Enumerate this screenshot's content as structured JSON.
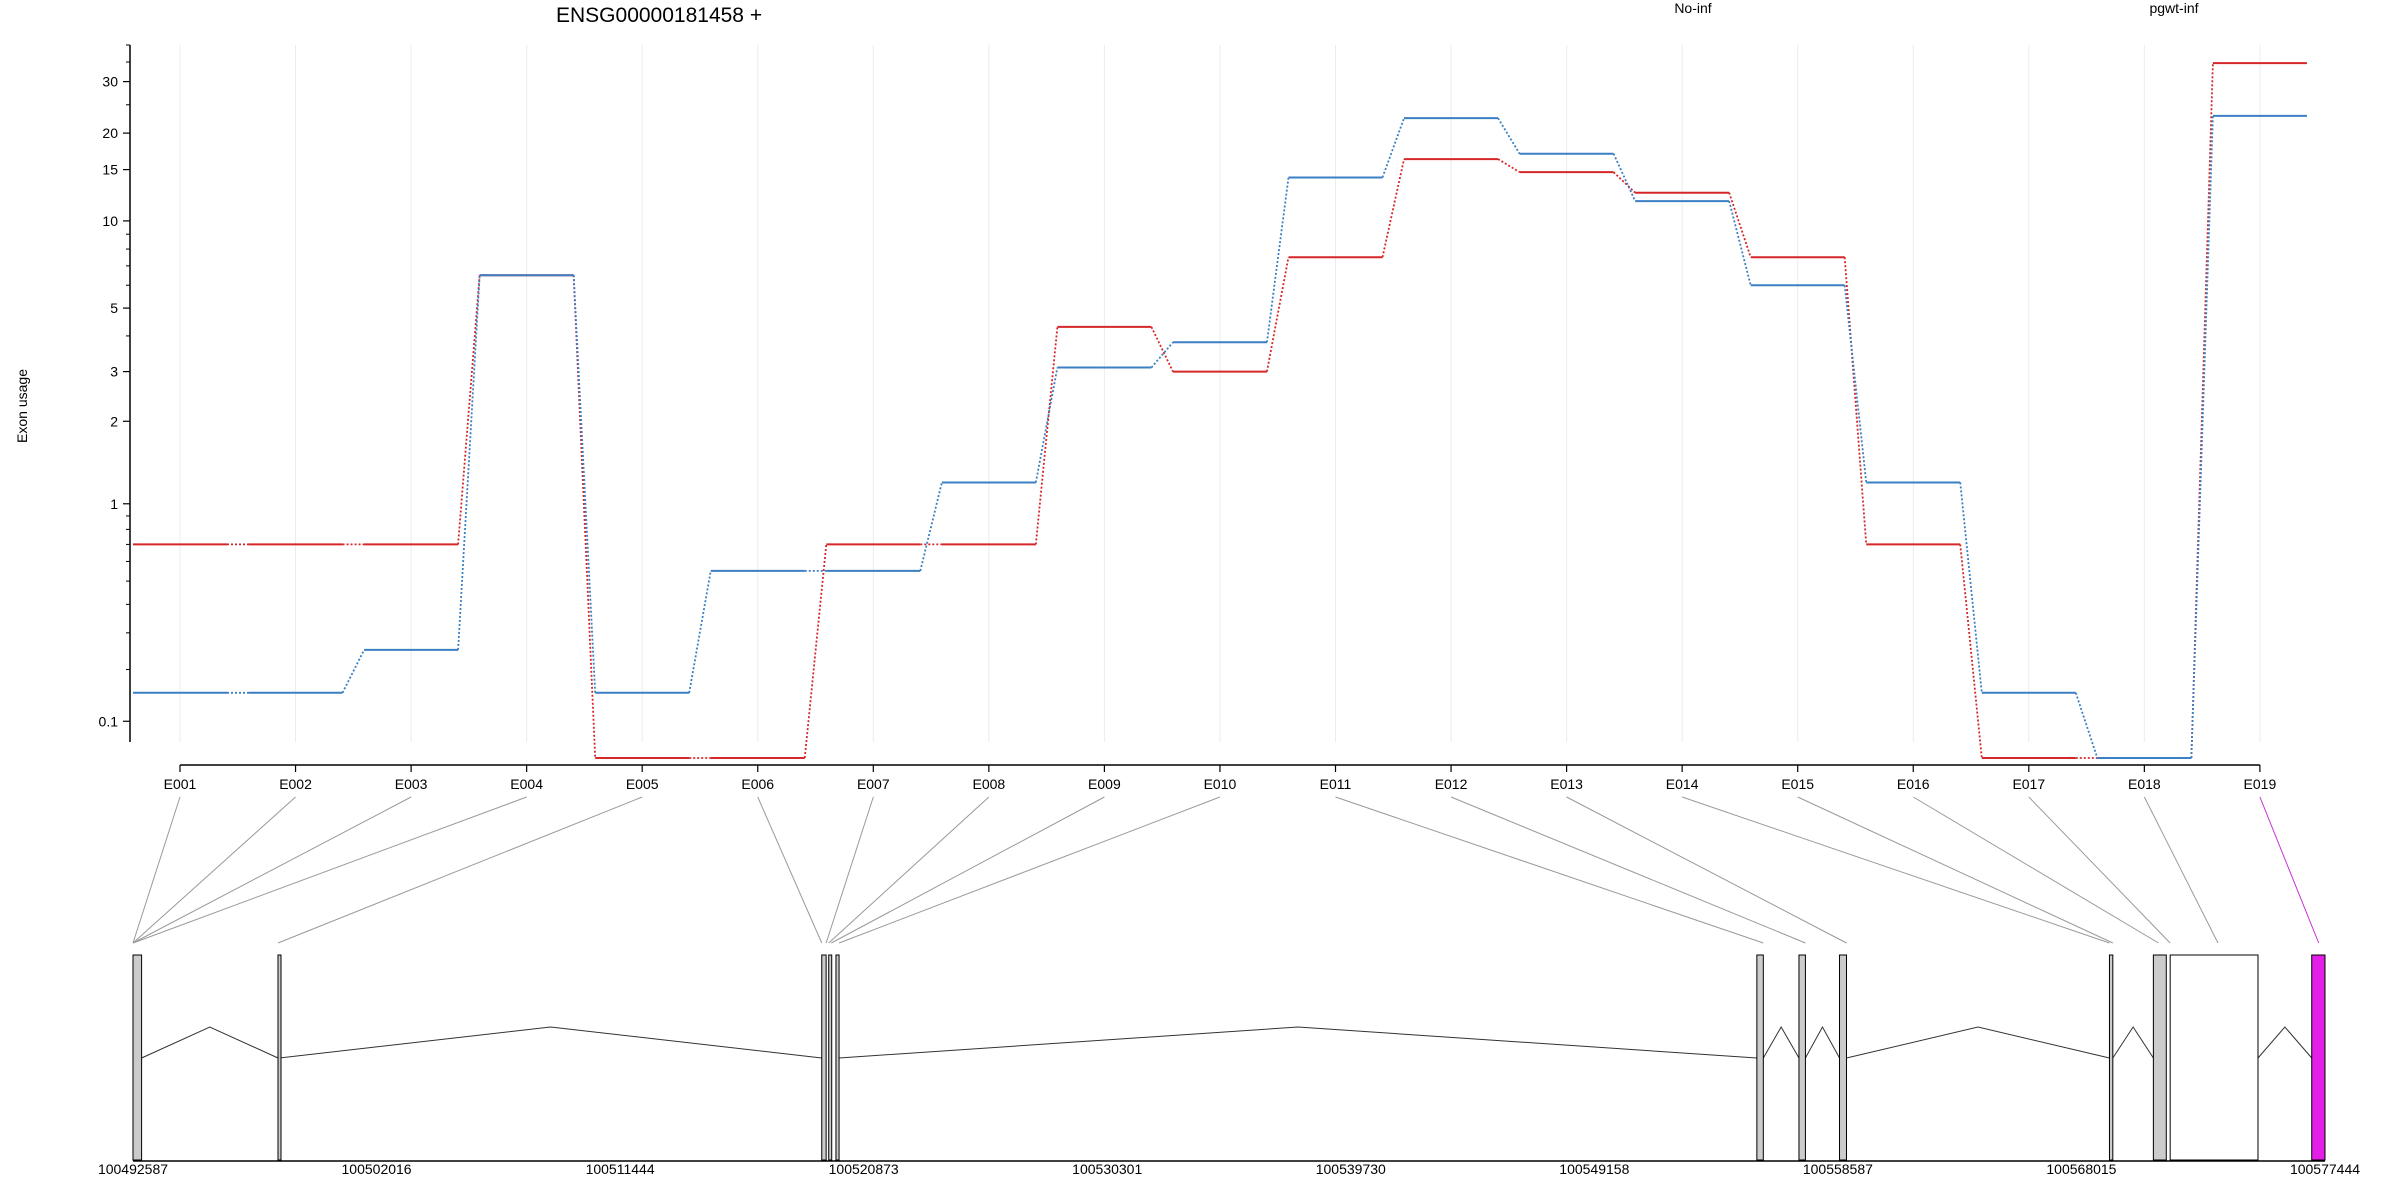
{
  "chart_data": {
    "type": "line",
    "title": "ENSG00000181458 +",
    "ylabel": "Exon usage",
    "xlabel": "",
    "y_scale": "log(y+0.1)",
    "ylim": [
      0.07,
      40
    ],
    "y_ticks": [
      0.1,
      1,
      2,
      3,
      5,
      10,
      15,
      20,
      30
    ],
    "y_tick_labels": [
      "0.1",
      "1",
      "2",
      "3",
      "5",
      "10",
      "15",
      "20",
      "30"
    ],
    "categories": [
      "E001",
      "E002",
      "E003",
      "E004",
      "E005",
      "E006",
      "E007",
      "E008",
      "E009",
      "E010",
      "E011",
      "E012",
      "E013",
      "E014",
      "E015",
      "E016",
      "E017",
      "E018",
      "E019"
    ],
    "series": [
      {
        "name": "No-inf",
        "color": "#d62728",
        "values": [
          0.7,
          0.7,
          0.7,
          6.5,
          0.05,
          0.05,
          0.7,
          0.7,
          4.3,
          3.0,
          7.5,
          16.3,
          14.7,
          12.5,
          7.5,
          0.7,
          0.05,
          0.05,
          34.7
        ]
      },
      {
        "name": "pgwt-inf",
        "color": "#3b7fc4",
        "values": [
          0.15,
          0.15,
          0.25,
          6.5,
          0.15,
          0.55,
          0.55,
          1.2,
          3.1,
          3.8,
          14.1,
          22.5,
          17.0,
          11.7,
          6.0,
          1.2,
          0.15,
          0.05,
          22.9
        ]
      }
    ],
    "legend_position": "top",
    "grid": "vertical",
    "gene_model": {
      "coordinate_labels": [
        "100492587",
        "100502016",
        "100511444",
        "100520873",
        "100530301",
        "100539730",
        "100549158",
        "100558587",
        "100568015",
        "100577444"
      ],
      "coord_min": 100492587,
      "coord_max": 100577444,
      "exons": [
        {
          "start": 100492587,
          "end": 100492920,
          "fill": "#cccccc"
        },
        {
          "start": 100498200,
          "end": 100498250,
          "fill": "#cccccc"
        },
        {
          "start": 100519250,
          "end": 100519420,
          "fill": "#cccccc"
        },
        {
          "start": 100519520,
          "end": 100519620,
          "fill": "#cccccc"
        },
        {
          "start": 100519800,
          "end": 100519920,
          "fill": "#cccccc"
        },
        {
          "start": 100555450,
          "end": 100555700,
          "fill": "#cccccc"
        },
        {
          "start": 100557080,
          "end": 100557330,
          "fill": "#cccccc"
        },
        {
          "start": 100558650,
          "end": 100558920,
          "fill": "#cccccc"
        },
        {
          "start": 100569100,
          "end": 100569230,
          "fill": "#cccccc"
        },
        {
          "start": 100570800,
          "end": 100571300,
          "fill": "#cccccc"
        },
        {
          "start": 100571450,
          "end": 100574850,
          "fill": "#ffffff"
        },
        {
          "start": 100576930,
          "end": 100577444,
          "fill": "#e31ee6"
        }
      ],
      "exon_map_targets": [
        100492587,
        100492587,
        100492587,
        100492587,
        100498200,
        100519250,
        100519420,
        100519520,
        100519620,
        100519920,
        100555700,
        100557330,
        100558920,
        100569100,
        100569230,
        100571000,
        100571450,
        100573300,
        100577200
      ],
      "highlight_color": "#c62fd6"
    }
  }
}
